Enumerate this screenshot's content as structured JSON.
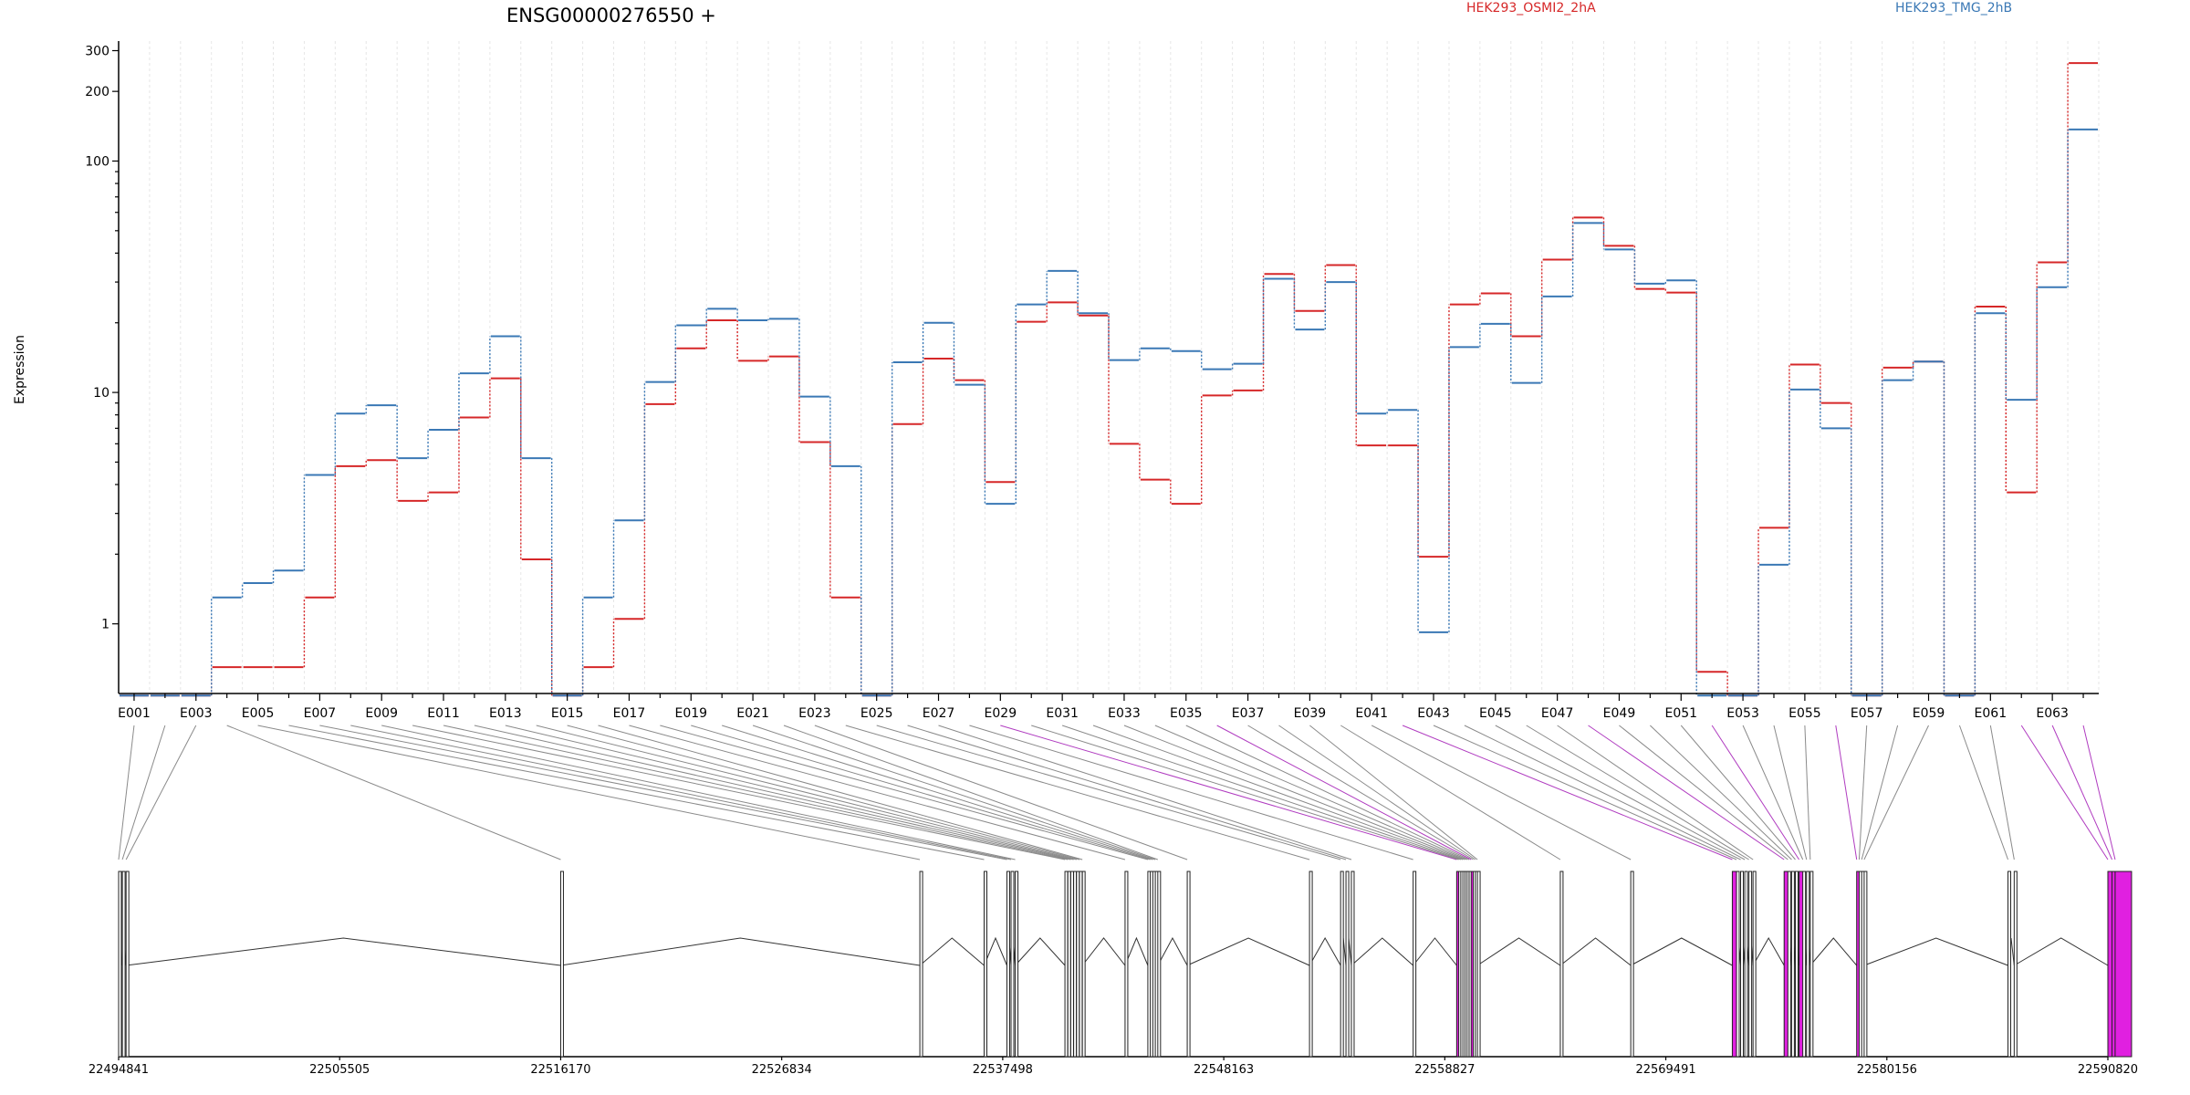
{
  "chart_data": {
    "type": "line",
    "title": "ENSG00000276550 +",
    "ylabel": "Expression",
    "yscale": "log",
    "ylim": [
      0.5,
      330
    ],
    "yticks": [
      1,
      10,
      100,
      200,
      300
    ],
    "ytick_labels": [
      "1",
      "10",
      "100",
      "200",
      "300"
    ],
    "grid": "vertical dashed per exon",
    "legend": "top-right",
    "exon_tick_labels": [
      "E001",
      "E003",
      "E005",
      "E007",
      "E009",
      "E011",
      "E013",
      "E015",
      "E017",
      "E019",
      "E021",
      "E023",
      "E025",
      "E027",
      "E029",
      "E031",
      "E033",
      "E035",
      "E037",
      "E039",
      "E041",
      "E043",
      "E045",
      "E047",
      "E049",
      "E051",
      "E053",
      "E055",
      "E057",
      "E059",
      "E061",
      "E063"
    ],
    "series": [
      {
        "name": "HEK293_OSMI2_2hA",
        "color": "#d62728",
        "values": [
          0.49,
          0.49,
          0.49,
          0.65,
          0.65,
          0.65,
          1.3,
          4.8,
          5.1,
          3.4,
          3.7,
          7.8,
          11.5,
          1.9,
          0.49,
          0.65,
          1.05,
          8.9,
          15.5,
          20.5,
          13.7,
          14.3,
          6.1,
          1.3,
          0.49,
          7.3,
          14.0,
          11.3,
          4.1,
          20.2,
          24.5,
          21.5,
          6.0,
          4.2,
          3.3,
          9.7,
          10.2,
          32.5,
          22.5,
          35.5,
          5.9,
          5.9,
          1.95,
          24.0,
          26.8,
          17.5,
          37.5,
          57.0,
          43.0,
          28.0,
          27.0,
          0.62,
          0.49,
          2.6,
          13.2,
          9.0,
          0.49,
          12.8,
          13.6,
          0.49,
          23.5,
          3.7,
          36.5,
          265
        ]
      },
      {
        "name": "HEK293_TMG_2hB",
        "color": "#3a78b5",
        "values": [
          0.49,
          0.49,
          0.49,
          1.3,
          1.5,
          1.7,
          4.4,
          8.1,
          8.8,
          5.2,
          6.9,
          12.1,
          17.5,
          5.2,
          0.49,
          1.3,
          2.8,
          11.1,
          19.5,
          23.0,
          20.5,
          20.8,
          9.6,
          4.8,
          0.49,
          13.5,
          20.0,
          10.8,
          3.3,
          24.0,
          33.5,
          22.0,
          13.8,
          15.5,
          15.1,
          12.6,
          13.3,
          31.0,
          18.7,
          30.0,
          8.1,
          8.4,
          0.92,
          15.7,
          19.8,
          11.0,
          26.0,
          54.0,
          41.5,
          29.5,
          30.5,
          0.49,
          0.49,
          1.8,
          10.3,
          7.0,
          0.49,
          11.3,
          13.6,
          0.49,
          22.0,
          9.3,
          28.5,
          137
        ]
      }
    ],
    "genomic_axis": {
      "labels": [
        "22494841",
        "22505505",
        "22516170",
        "22526834",
        "22537498",
        "22548163",
        "22558827",
        "22569491",
        "22580156",
        "22590820"
      ],
      "range": [
        22494841,
        22590820
      ]
    }
  }
}
